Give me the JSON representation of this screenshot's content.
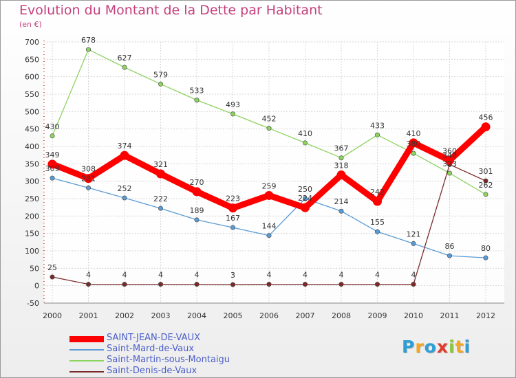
{
  "header": {
    "title": "Evolution du Montant de la Dette par Habitant",
    "subtitle": "(en €)"
  },
  "logo_text": "Proxiti",
  "chart_data": {
    "type": "line",
    "x": [
      "2000",
      "2001",
      "2002",
      "2003",
      "2004",
      "2005",
      "2006",
      "2007",
      "2008",
      "2009",
      "2010",
      "2011",
      "2012"
    ],
    "ylim": [
      -50,
      700
    ],
    "yticks": [
      -50,
      0,
      50,
      100,
      150,
      200,
      250,
      300,
      350,
      400,
      450,
      500,
      550,
      600,
      650,
      700
    ],
    "grid": true,
    "legend_position": "bottom-left",
    "series": [
      {
        "name": "SAINT-JEAN-DE-VAUX",
        "color": "#ff0000",
        "values": [
          349,
          308,
          374,
          321,
          270,
          223,
          259,
          224,
          318,
          242,
          410,
          360,
          456
        ],
        "labels": [
          "349",
          "308",
          "374",
          "321",
          "270",
          "223",
          "259",
          "224",
          "318",
          "242",
          "410",
          "360",
          "456"
        ]
      },
      {
        "name": "Saint-Mard-de-Vaux",
        "color": "#5b9bd5",
        "values": [
          309,
          281,
          252,
          222,
          189,
          167,
          144,
          250,
          214,
          155,
          121,
          86,
          80
        ],
        "labels": [
          "309",
          "281",
          "252",
          "222",
          "189",
          "167",
          "144",
          "250",
          "214",
          "155",
          "121",
          "86",
          "80"
        ]
      },
      {
        "name": "Saint-Martin-sous-Montaigu",
        "color": "#8dd35f",
        "values": [
          430,
          678,
          627,
          579,
          533,
          493,
          452,
          410,
          367,
          433,
          380,
          323,
          262
        ],
        "labels": [
          "430",
          "678",
          "627",
          "579",
          "533",
          "493",
          "452",
          "410",
          "367",
          "433",
          "380",
          "323",
          "262"
        ]
      },
      {
        "name": "Saint-Denis-de-Vaux",
        "color": "#7a2a2a",
        "values": [
          25,
          4,
          4,
          4,
          4,
          3,
          4,
          4,
          4,
          4,
          4,
          348,
          301
        ],
        "labels": [
          "25",
          "4",
          "4",
          "4",
          "4",
          "3",
          "4",
          "4",
          "4",
          "4",
          "4",
          "348",
          "301"
        ]
      }
    ]
  }
}
